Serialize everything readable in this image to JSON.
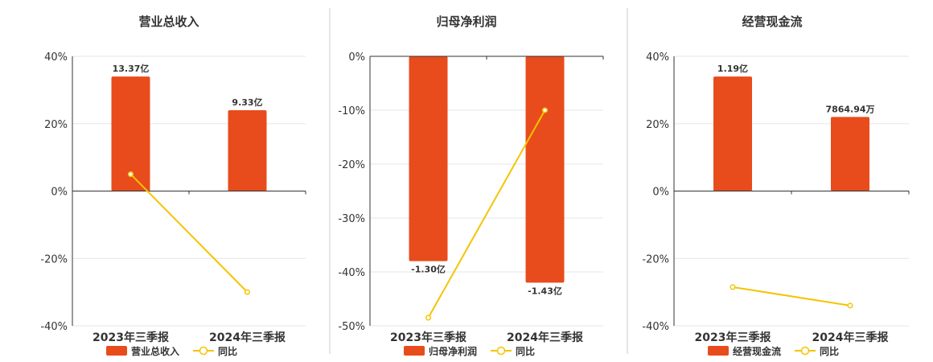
{
  "colors": {
    "bar": "#e84c1c",
    "line": "#f5c400",
    "grid": "#e5e5e5",
    "axis": "#333333",
    "text": "#333333",
    "divider": "#cccccc"
  },
  "chart_data": [
    {
      "type": "bar",
      "title": "营业总收入",
      "categories": [
        "2023年三季报",
        "2024年三季报"
      ],
      "ylim": [
        -40,
        40
      ],
      "yticks": [
        40,
        20,
        0,
        -20,
        -40
      ],
      "ytick_labels": [
        "40%",
        "20%",
        "0%",
        "-20%",
        "-40%"
      ],
      "series": [
        {
          "name": "营业总收入",
          "kind": "bar",
          "values": [
            34,
            24
          ],
          "data_labels": [
            "13.37亿",
            "9.33亿"
          ]
        },
        {
          "name": "同比",
          "kind": "line",
          "values": [
            5,
            -30
          ]
        }
      ],
      "legend_position": "bottom",
      "grid": true
    },
    {
      "type": "bar",
      "title": "归母净利润",
      "categories": [
        "2023年三季报",
        "2024年三季报"
      ],
      "ylim": [
        -50,
        0
      ],
      "yticks": [
        0,
        -10,
        -20,
        -30,
        -40,
        -50
      ],
      "ytick_labels": [
        "0%",
        "-10%",
        "-20%",
        "-30%",
        "-40%",
        "-50%"
      ],
      "series": [
        {
          "name": "归母净利润",
          "kind": "bar",
          "values": [
            -38,
            -42
          ],
          "data_labels": [
            "-1.30亿",
            "-1.43亿"
          ]
        },
        {
          "name": "同比",
          "kind": "line",
          "values": [
            -48.5,
            -10
          ]
        }
      ],
      "legend_position": "bottom",
      "grid": true
    },
    {
      "type": "bar",
      "title": "经营现金流",
      "categories": [
        "2023年三季报",
        "2024年三季报"
      ],
      "ylim": [
        -40,
        40
      ],
      "yticks": [
        40,
        20,
        0,
        -20,
        -40
      ],
      "ytick_labels": [
        "40%",
        "20%",
        "0%",
        "-20%",
        "-40%"
      ],
      "series": [
        {
          "name": "经营现金流",
          "kind": "bar",
          "values": [
            34,
            22
          ],
          "data_labels": [
            "1.19亿",
            "7864.94万"
          ]
        },
        {
          "name": "同比",
          "kind": "line",
          "values": [
            -28.5,
            -34
          ]
        }
      ],
      "legend_position": "bottom",
      "grid": true
    }
  ]
}
